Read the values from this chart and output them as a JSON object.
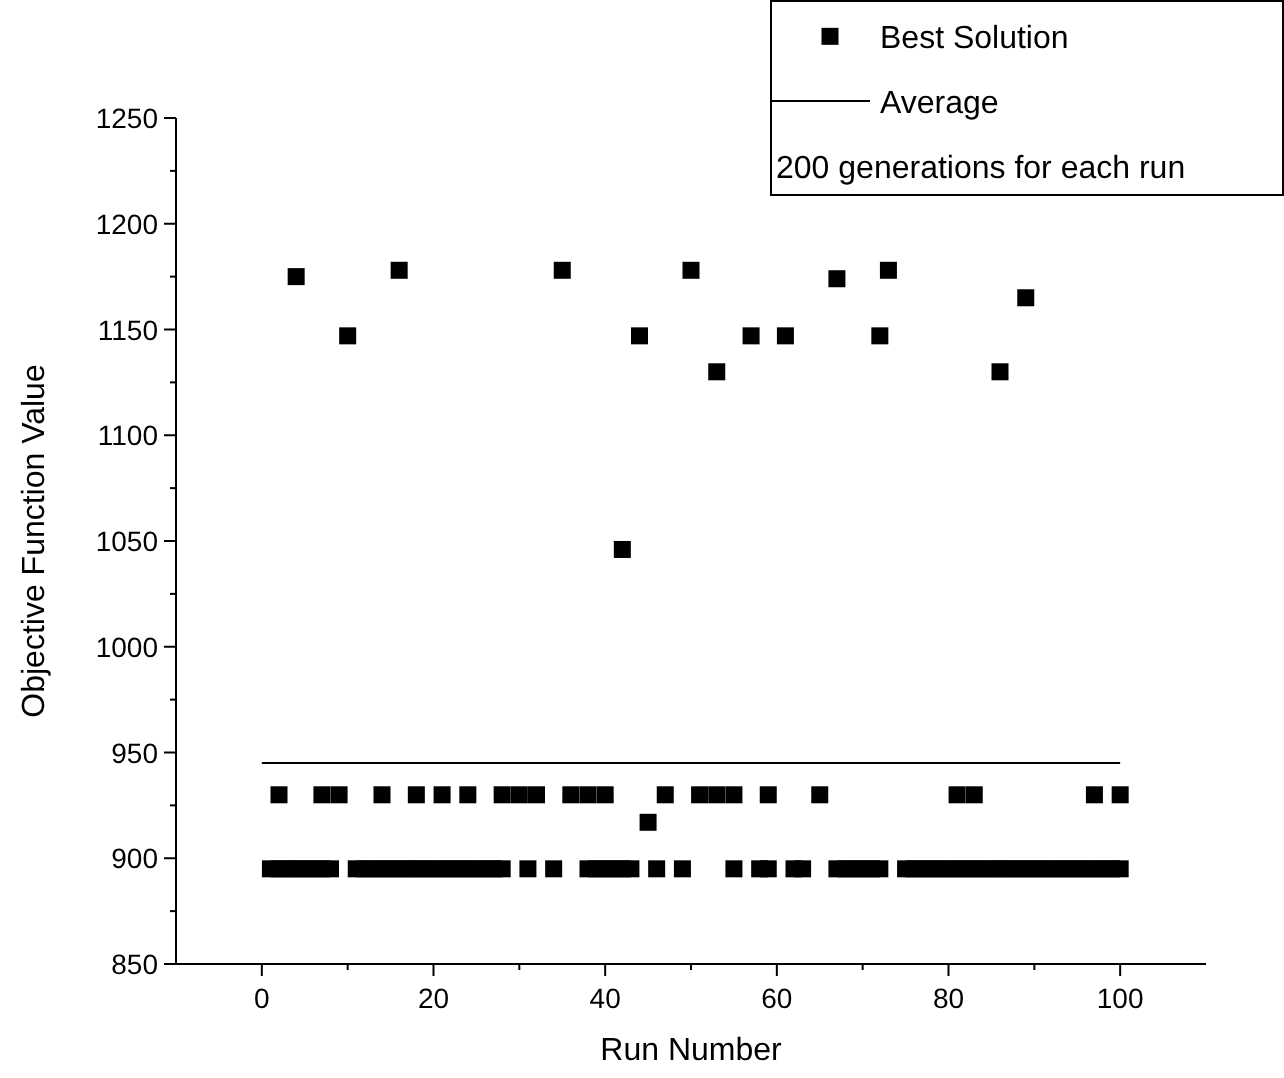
{
  "chart_data": {
    "type": "scatter",
    "xlabel": "Run Number",
    "ylabel": "Objective Function Value",
    "xlim": [
      -10,
      110
    ],
    "ylim": [
      850,
      1250
    ],
    "xticks": [
      0,
      {
        "value": 10,
        "label": null
      },
      20,
      {
        "value": 30,
        "label": null
      },
      40,
      {
        "value": 50,
        "label": null
      },
      60,
      {
        "value": 70,
        "label": null
      },
      80,
      {
        "value": 90,
        "label": null
      },
      100
    ],
    "yticks": [
      850,
      {
        "value": 875,
        "label": null
      },
      900,
      {
        "value": 925,
        "label": null
      },
      950,
      {
        "value": 975,
        "label": null
      },
      1000,
      {
        "value": 1025,
        "label": null
      },
      1050,
      {
        "value": 1075,
        "label": null
      },
      1100,
      {
        "value": 1125,
        "label": null
      },
      1150,
      {
        "value": 1175,
        "label": null
      },
      1200,
      {
        "value": 1225,
        "label": null
      },
      1250
    ],
    "grid": false,
    "legend": "top right",
    "marker": "square",
    "annotations": [
      "200 generations for each run"
    ],
    "series": [
      {
        "name": "Best Solution",
        "color": "#000000",
        "x": [
          4,
          10,
          16,
          35,
          42,
          44,
          45,
          50,
          53,
          57,
          61,
          67,
          72,
          73,
          86,
          89,
          2,
          7,
          9,
          14,
          18,
          21,
          24,
          28,
          30,
          32,
          36,
          38,
          40,
          47,
          51,
          53,
          55,
          59,
          65,
          81,
          83,
          97,
          100,
          1,
          2,
          3,
          4,
          5,
          6,
          7,
          8,
          11,
          12,
          13,
          14,
          15,
          16,
          17,
          18,
          19,
          20,
          21,
          22,
          23,
          24,
          25,
          26,
          27,
          28,
          31,
          34,
          38,
          39,
          40,
          41,
          42,
          43,
          46,
          49,
          55,
          58,
          59,
          62,
          63,
          67,
          68,
          69,
          70,
          71,
          72,
          75,
          76,
          77,
          78,
          79,
          80,
          81,
          82,
          83,
          84,
          85,
          86,
          87,
          88,
          89,
          90,
          91,
          92,
          93,
          94,
          95,
          96,
          97,
          98,
          99,
          100
        ],
        "values": [
          1175,
          1147,
          1178,
          1178,
          1046,
          1147,
          917,
          1178,
          1130,
          1147,
          1147,
          1174,
          1147,
          1178,
          1130,
          1165,
          930,
          930,
          930,
          930,
          930,
          930,
          930,
          930,
          930,
          930,
          930,
          930,
          930,
          930,
          930,
          930,
          930,
          930,
          930,
          930,
          930,
          930,
          930,
          895,
          895,
          895,
          895,
          895,
          895,
          895,
          895,
          895,
          895,
          895,
          895,
          895,
          895,
          895,
          895,
          895,
          895,
          895,
          895,
          895,
          895,
          895,
          895,
          895,
          895,
          895,
          895,
          895,
          895,
          895,
          895,
          895,
          895,
          895,
          895,
          895,
          895,
          895,
          895,
          895,
          895,
          895,
          895,
          895,
          895,
          895,
          895,
          895,
          895,
          895,
          895,
          895,
          895,
          895,
          895,
          895,
          895,
          895,
          895,
          895,
          895,
          895,
          895,
          895,
          895,
          895,
          895,
          895,
          895,
          895,
          895,
          895
        ]
      },
      {
        "name": "Average",
        "type": "line",
        "color": "#000000",
        "marker": "none",
        "line_style": "solid",
        "x": [
          0,
          100
        ],
        "values": [
          945,
          945
        ]
      }
    ]
  }
}
